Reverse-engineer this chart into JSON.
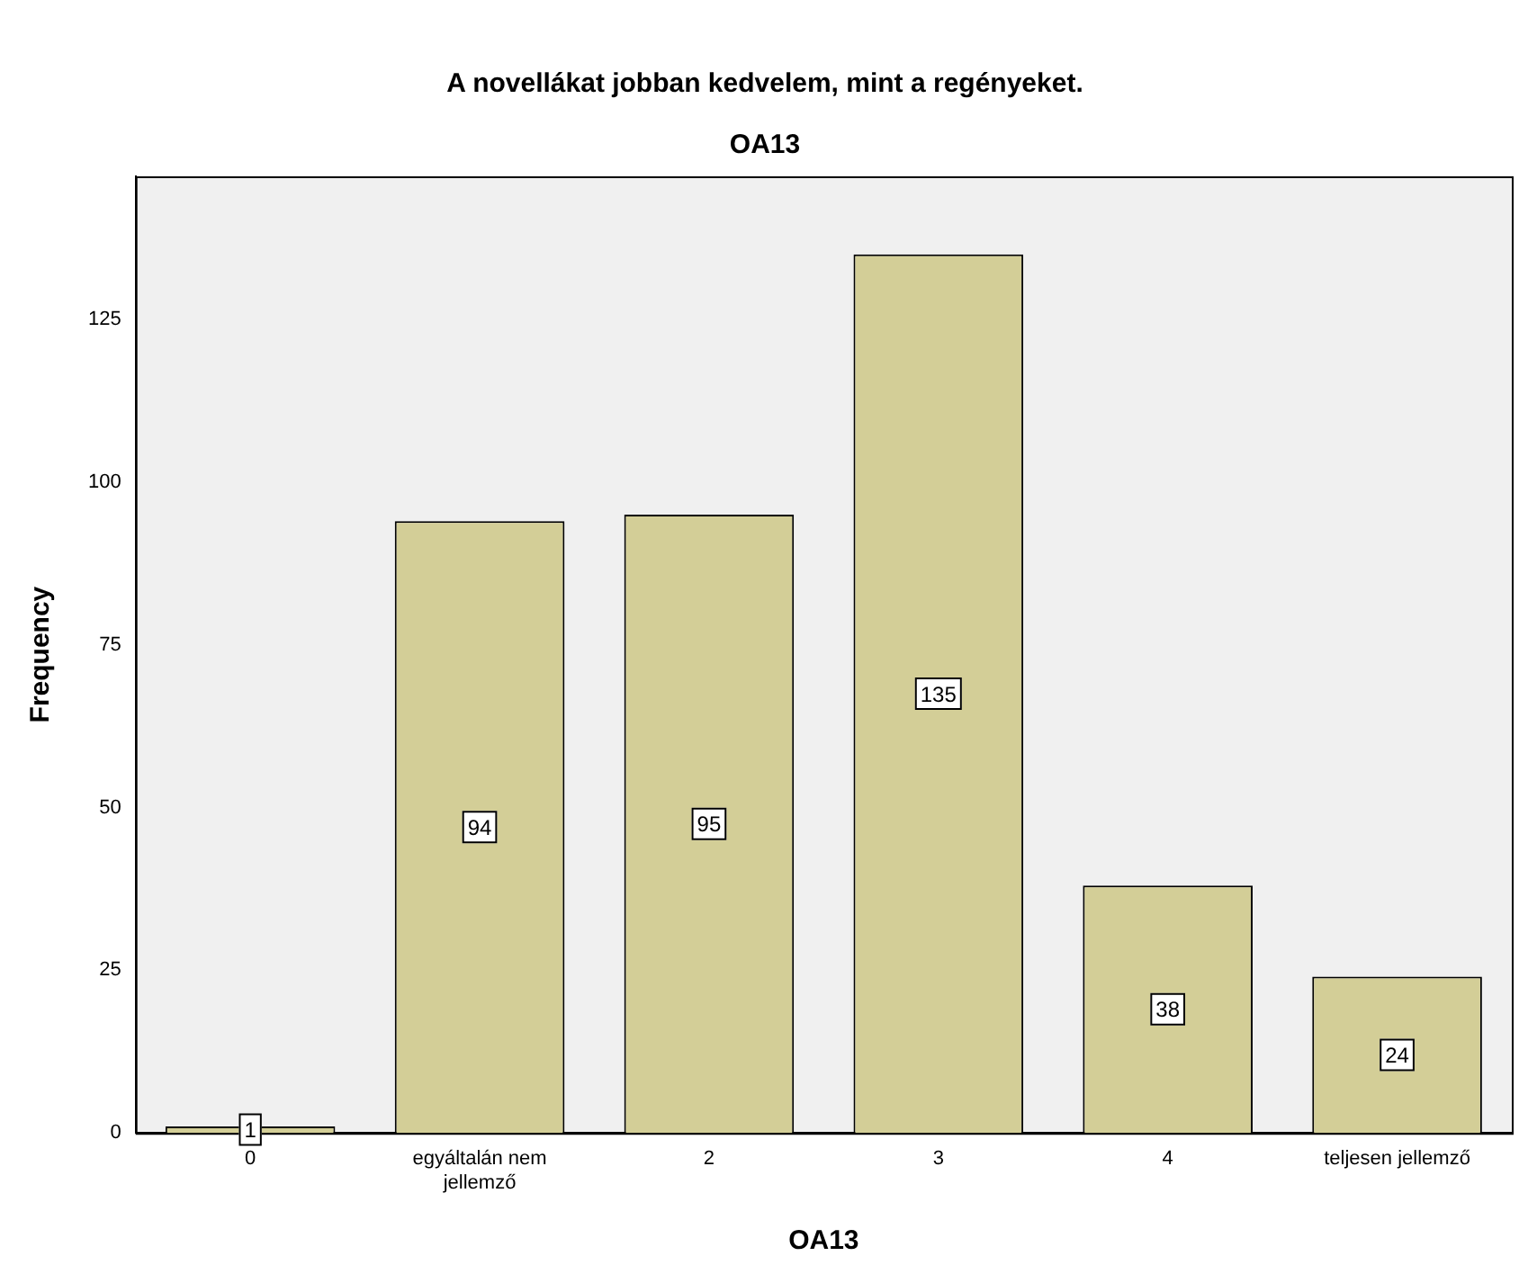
{
  "chart_data": {
    "type": "bar",
    "title": "A novellákat jobban kedvelem, mint a regényeket.",
    "subtitle": "OA13",
    "xlabel": "OA13",
    "ylabel": "Frequency",
    "categories": [
      "0",
      "egyáltalán nem jellemző",
      "2",
      "3",
      "4",
      "teljesen jellemző"
    ],
    "values": [
      1,
      94,
      95,
      135,
      38,
      24
    ],
    "color": "#d3ce97",
    "ylim": [
      0,
      147
    ],
    "yticks": [
      0,
      25,
      50,
      75,
      100,
      125
    ],
    "grid": false,
    "legend": false,
    "data_labels": true
  }
}
